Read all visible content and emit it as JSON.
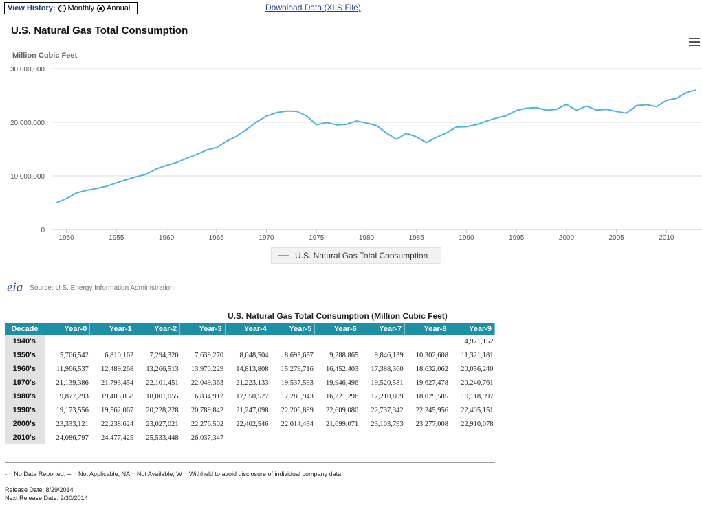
{
  "view_history": {
    "label": "View History:",
    "options": [
      {
        "label": "Monthly",
        "selected": false
      },
      {
        "label": "Annual",
        "selected": true
      }
    ]
  },
  "download_link": "Download Data (XLS File)",
  "menu_icon": "hamburger-menu-icon",
  "source": {
    "logo_text": "eia",
    "text": "Source: U.S. Energy Information Administration"
  },
  "table": {
    "title": "U.S. Natural Gas Total Consumption (Million Cubic Feet)",
    "header_color": "#1e8fa5",
    "headers": [
      "Decade",
      "Year-0",
      "Year-1",
      "Year-2",
      "Year-3",
      "Year-4",
      "Year-5",
      "Year-6",
      "Year-7",
      "Year-8",
      "Year-9"
    ],
    "rows": [
      {
        "decade": "1940's",
        "values": [
          "",
          "",
          "",
          "",
          "",
          "",
          "",
          "",
          "",
          "4,971,152"
        ]
      },
      {
        "decade": "1950's",
        "values": [
          "5,766,542",
          "6,810,162",
          "7,294,320",
          "7,639,270",
          "8,048,504",
          "8,693,657",
          "9,288,865",
          "9,846,139",
          "10,302,608",
          "11,321,181"
        ]
      },
      {
        "decade": "1960's",
        "values": [
          "11,966,537",
          "12,489,268",
          "13,266,513",
          "13,970,229",
          "14,813,808",
          "15,279,716",
          "16,452,403",
          "17,388,360",
          "18,632,062",
          "20,056,240"
        ]
      },
      {
        "decade": "1970's",
        "values": [
          "21,139,386",
          "21,793,454",
          "22,101,451",
          "22,049,363",
          "21,223,133",
          "19,537,593",
          "19,946,496",
          "19,520,581",
          "19,627,478",
          "20,240,761"
        ]
      },
      {
        "decade": "1980's",
        "values": [
          "19,877,293",
          "19,403,858",
          "18,001,055",
          "16,834,912",
          "17,950,527",
          "17,280,943",
          "16,221,296",
          "17,210,809",
          "18,029,585",
          "19,118,997"
        ]
      },
      {
        "decade": "1990's",
        "values": [
          "19,173,556",
          "19,562,067",
          "20,228,228",
          "20,789,842",
          "21,247,098",
          "22,206,889",
          "22,609,080",
          "22,737,342",
          "22,245,956",
          "22,405,151"
        ]
      },
      {
        "decade": "2000's",
        "values": [
          "23,333,121",
          "22,238,624",
          "23,027,021",
          "22,276,502",
          "22,402,546",
          "22,014,434",
          "21,699,071",
          "23,103,793",
          "23,277,008",
          "22,910,078"
        ]
      },
      {
        "decade": "2010's",
        "values": [
          "24,086,797",
          "24,477,425",
          "25,533,448",
          "26,037,347",
          "",
          "",
          "",
          "",
          "",
          ""
        ]
      }
    ]
  },
  "notes": "- = No Data Reported;  -- = Not Applicable;  NA = Not Available;  W = Withheld to avoid disclosure of individual company data.",
  "release_date": "Release Date: 8/29/2014",
  "next_release_date": "Next Release Date: 9/30/2014",
  "chart_data": {
    "type": "line",
    "title": "U.S. Natural Gas Total Consumption",
    "ylabel": "Million Cubic Feet",
    "xlabel": "",
    "ylim": [
      0,
      30000000
    ],
    "xlim": [
      1948,
      2014
    ],
    "y_ticks": [
      "0",
      "10,000,000",
      "20,000,000",
      "30,000,000"
    ],
    "x_ticks": [
      "1950",
      "1955",
      "1960",
      "1965",
      "1970",
      "1975",
      "1980",
      "1985",
      "1990",
      "1995",
      "2000",
      "2005",
      "2010"
    ],
    "grid": true,
    "legend_position": "bottom-center",
    "series": [
      {
        "name": "U.S. Natural Gas Total Consumption",
        "color": "#4fb3e0",
        "x": [
          1949,
          1950,
          1951,
          1952,
          1953,
          1954,
          1955,
          1956,
          1957,
          1958,
          1959,
          1960,
          1961,
          1962,
          1963,
          1964,
          1965,
          1966,
          1967,
          1968,
          1969,
          1970,
          1971,
          1972,
          1973,
          1974,
          1975,
          1976,
          1977,
          1978,
          1979,
          1980,
          1981,
          1982,
          1983,
          1984,
          1985,
          1986,
          1987,
          1988,
          1989,
          1990,
          1991,
          1992,
          1993,
          1994,
          1995,
          1996,
          1997,
          1998,
          1999,
          2000,
          2001,
          2002,
          2003,
          2004,
          2005,
          2006,
          2007,
          2008,
          2009,
          2010,
          2011,
          2012,
          2013
        ],
        "y": [
          4971152,
          5766542,
          6810162,
          7294320,
          7639270,
          8048504,
          8693657,
          9288865,
          9846139,
          10302608,
          11321181,
          11966537,
          12489268,
          13266513,
          13970229,
          14813808,
          15279716,
          16452403,
          17388360,
          18632062,
          20056240,
          21139386,
          21793454,
          22101451,
          22049363,
          21223133,
          19537593,
          19946496,
          19520581,
          19627478,
          20240761,
          19877293,
          19403858,
          18001055,
          16834912,
          17950527,
          17280943,
          16221296,
          17210809,
          18029585,
          19118997,
          19173556,
          19562067,
          20228228,
          20789842,
          21247098,
          22206889,
          22609080,
          22737342,
          22245956,
          22405151,
          23333121,
          22238624,
          23027021,
          22276502,
          22402546,
          22014434,
          21699071,
          23103793,
          23277008,
          22910078,
          24086797,
          24477425,
          25533448,
          26037347
        ]
      }
    ]
  }
}
